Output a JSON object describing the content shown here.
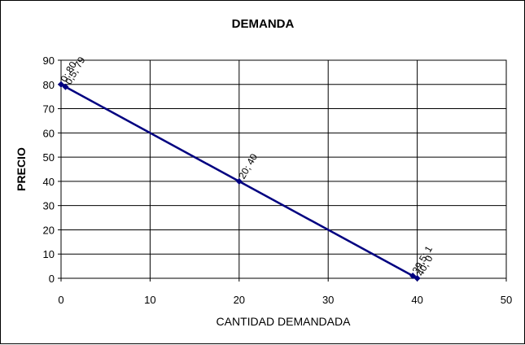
{
  "chart_data": {
    "type": "line",
    "title": "DEMANDA",
    "xlabel": "CANTIDAD DEMANDADA",
    "ylabel": "PRECIO",
    "xlim": [
      0,
      50
    ],
    "ylim": [
      0,
      90
    ],
    "xticks": [
      0,
      10,
      20,
      30,
      40,
      50
    ],
    "yticks": [
      0,
      10,
      20,
      30,
      40,
      50,
      60,
      70,
      80,
      90
    ],
    "grid": true,
    "legend": "none",
    "series": [
      {
        "color": "#000080",
        "x": [
          0,
          0.5,
          20,
          39.5,
          40
        ],
        "y": [
          80,
          79,
          40,
          1,
          0
        ]
      }
    ],
    "data_labels": [
      "0; 80",
      "0,5; 79",
      "20; 40",
      "39,5; 1",
      "40; 0"
    ]
  }
}
